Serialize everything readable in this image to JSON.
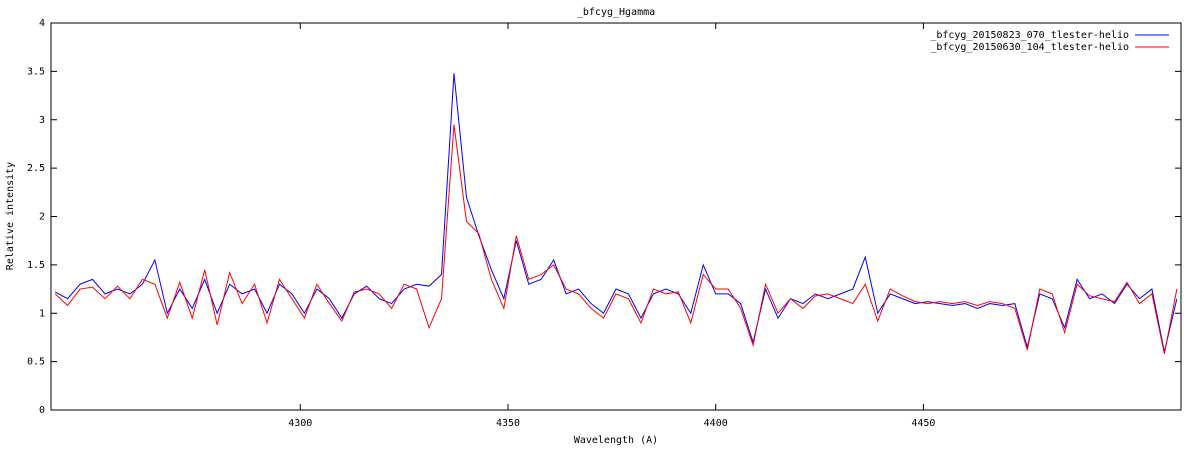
{
  "chart_data": {
    "type": "line",
    "title": "_bfcyg_Hgamma",
    "x_label": "Wavelength (A)",
    "y_label": "Relative intensity",
    "x": [
      4241,
      4244,
      4247,
      4250,
      4253,
      4256,
      4259,
      4262,
      4265,
      4268,
      4271,
      4274,
      4277,
      4280,
      4283,
      4286,
      4289,
      4292,
      4295,
      4298,
      4301,
      4304,
      4307,
      4310,
      4313,
      4316,
      4319,
      4322,
      4325,
      4328,
      4331,
      4334,
      4337,
      4340,
      4343,
      4346,
      4349,
      4352,
      4355,
      4358,
      4361,
      4364,
      4367,
      4370,
      4373,
      4376,
      4379,
      4382,
      4385,
      4388,
      4391,
      4394,
      4397,
      4400,
      4403,
      4406,
      4409,
      4412,
      4415,
      4418,
      4421,
      4424,
      4427,
      4430,
      4433,
      4436,
      4439,
      4442,
      4445,
      4448,
      4451,
      4454,
      4457,
      4460,
      4463,
      4466,
      4469,
      4472,
      4475,
      4478,
      4481,
      4484,
      4487,
      4490,
      4493,
      4496,
      4499,
      4502,
      4505,
      4508,
      4511
    ],
    "series": [
      {
        "name": "_bfcyg_20150823_070_tlester-helio",
        "color": "#0000ff",
        "values": [
          1.22,
          1.15,
          1.3,
          1.35,
          1.2,
          1.25,
          1.2,
          1.3,
          1.55,
          1.0,
          1.25,
          1.05,
          1.35,
          1.0,
          1.3,
          1.2,
          1.25,
          1.0,
          1.3,
          1.2,
          1.0,
          1.25,
          1.15,
          0.95,
          1.2,
          1.28,
          1.15,
          1.1,
          1.25,
          1.3,
          1.28,
          1.4,
          3.48,
          2.2,
          1.8,
          1.45,
          1.15,
          1.75,
          1.3,
          1.35,
          1.55,
          1.2,
          1.25,
          1.1,
          1.0,
          1.25,
          1.2,
          0.95,
          1.2,
          1.25,
          1.2,
          1.0,
          1.5,
          1.2,
          1.2,
          1.1,
          0.7,
          1.25,
          0.95,
          1.15,
          1.1,
          1.2,
          1.15,
          1.2,
          1.25,
          1.58,
          1.0,
          1.2,
          1.15,
          1.1,
          1.12,
          1.1,
          1.08,
          1.1,
          1.05,
          1.1,
          1.08,
          1.1,
          0.65,
          1.2,
          1.15,
          0.85,
          1.35,
          1.15,
          1.2,
          1.1,
          1.3,
          1.15,
          1.25,
          0.6,
          1.15
        ]
      },
      {
        "name": "_bfcyg_20150630_104_tlester-helio",
        "color": "#ff0000",
        "values": [
          1.2,
          1.08,
          1.25,
          1.27,
          1.15,
          1.28,
          1.15,
          1.35,
          1.3,
          0.95,
          1.32,
          0.95,
          1.45,
          0.88,
          1.42,
          1.1,
          1.3,
          0.9,
          1.35,
          1.15,
          0.95,
          1.3,
          1.1,
          0.92,
          1.22,
          1.25,
          1.2,
          1.05,
          1.3,
          1.25,
          0.85,
          1.15,
          2.95,
          1.95,
          1.82,
          1.35,
          1.05,
          1.8,
          1.35,
          1.4,
          1.5,
          1.25,
          1.2,
          1.05,
          0.95,
          1.2,
          1.15,
          0.9,
          1.25,
          1.2,
          1.22,
          0.9,
          1.4,
          1.25,
          1.25,
          1.05,
          0.67,
          1.3,
          1.0,
          1.15,
          1.05,
          1.18,
          1.2,
          1.15,
          1.1,
          1.3,
          0.92,
          1.25,
          1.18,
          1.12,
          1.1,
          1.12,
          1.1,
          1.12,
          1.08,
          1.12,
          1.1,
          1.05,
          0.62,
          1.25,
          1.2,
          0.8,
          1.3,
          1.18,
          1.15,
          1.12,
          1.32,
          1.1,
          1.2,
          0.58,
          1.25
        ]
      }
    ],
    "xlim": [
      4240,
      4512
    ],
    "ylim": [
      0,
      4
    ],
    "xticks": [
      4300,
      4350,
      4400,
      4450
    ],
    "yticks": [
      0,
      0.5,
      1,
      1.5,
      2,
      2.5,
      3,
      3.5,
      4
    ],
    "legend": "top-right",
    "grid": false
  }
}
